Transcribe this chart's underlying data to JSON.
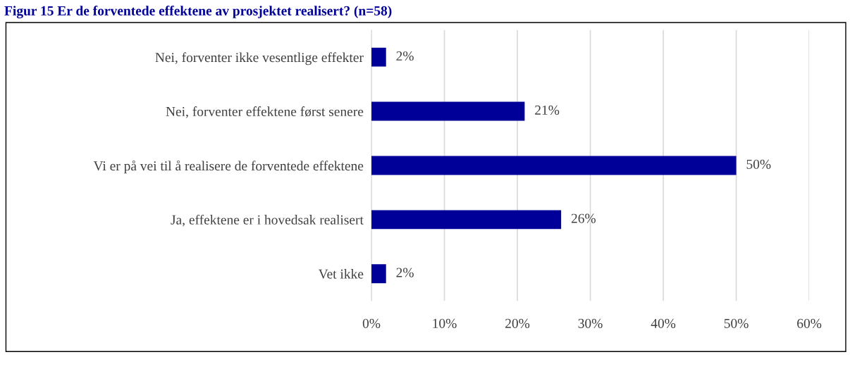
{
  "chart_data": {
    "type": "bar",
    "orientation": "horizontal",
    "title": "Figur 15 Er de forventede effektene av prosjektet realisert? (n=58)",
    "categories": [
      "Nei, forventer ikke vesentlige effekter",
      "Nei, forventer effektene først senere",
      "Vi er på vei til å realisere de forventede effektene",
      "Ja, effektene er i hovedsak realisert",
      "Vet ikke"
    ],
    "values": [
      2,
      21,
      50,
      26,
      2
    ],
    "value_labels": [
      "2%",
      "21%",
      "50%",
      "26%",
      "2%"
    ],
    "color": "#000099",
    "xlim": [
      0,
      60
    ],
    "xticks": [
      {
        "value": 0,
        "label": "0%"
      },
      {
        "value": 10,
        "label": "10%"
      },
      {
        "value": 20,
        "label": "20%"
      },
      {
        "value": 30,
        "label": "30%"
      },
      {
        "value": 40,
        "label": "40%"
      },
      {
        "value": 50,
        "label": "50%"
      },
      {
        "value": 60,
        "label": "60%"
      }
    ],
    "grid": "x",
    "legend": false
  }
}
